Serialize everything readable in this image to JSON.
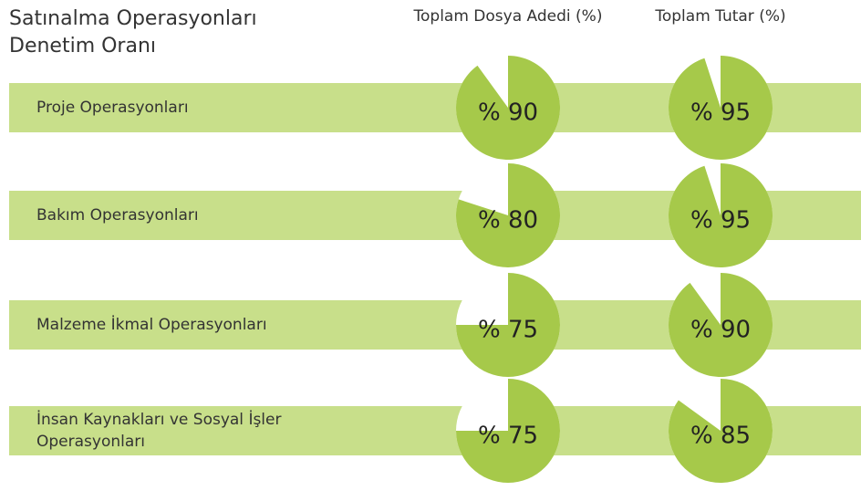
{
  "chart_data": {
    "type": "pie-table",
    "title": "Satınalma Operasyonları Denetim Oranı",
    "columns": [
      "Toplam Dosya Adedi (%)",
      "Toplam Tutar (%)"
    ],
    "color": "#a6c94a",
    "band_color": "#c8df8a",
    "rows": [
      {
        "label": "Proje Operasyonları",
        "values": [
          90,
          95
        ],
        "value_labels": [
          "% 90",
          "% 95"
        ]
      },
      {
        "label": "Bakım Operasyonları",
        "values": [
          80,
          95
        ],
        "value_labels": [
          "% 80",
          "% 95"
        ]
      },
      {
        "label": "Malzeme İkmal Operasyonları",
        "values": [
          75,
          90
        ],
        "value_labels": [
          "% 75",
          "% 90"
        ]
      },
      {
        "label": "İnsan Kaynakları ve Sosyal İşler Operasyonları",
        "values": [
          75,
          85
        ],
        "value_labels": [
          "% 75",
          "% 85"
        ]
      }
    ]
  }
}
